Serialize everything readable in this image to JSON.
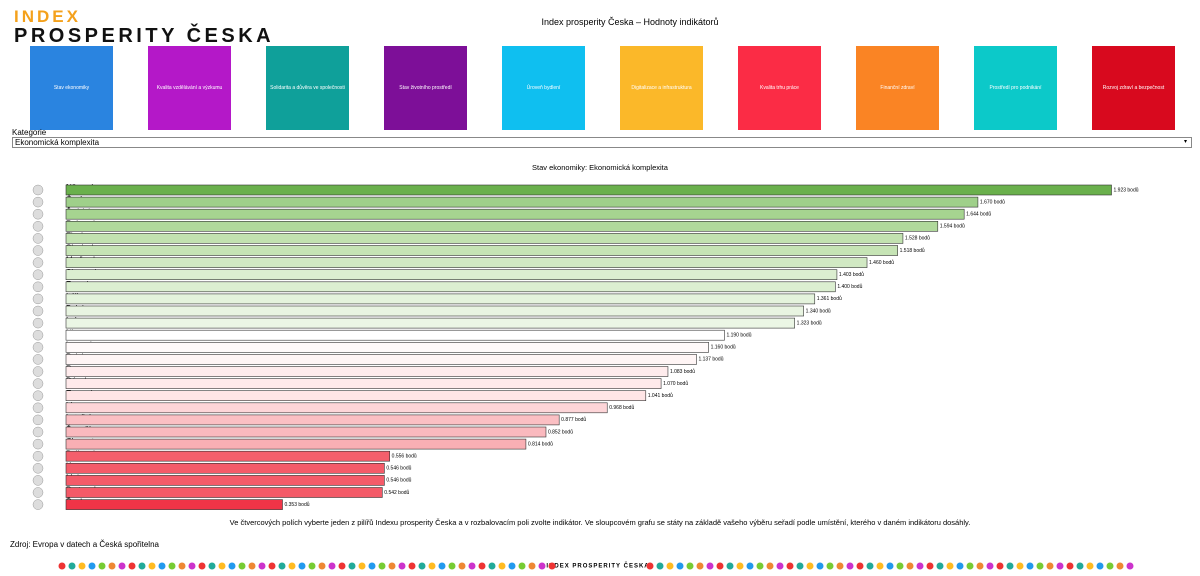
{
  "header": {
    "logo_top": "INDEX",
    "logo_bottom": "PROSPERITY ČESKA",
    "title": "Index prosperity Česka – Hodnoty indikátorů"
  },
  "tiles": [
    {
      "label": "Stav ekonomiky",
      "color": "#2a84e0"
    },
    {
      "label": "Kvalita vzdělávání a výzkumu",
      "color": "#b418c8"
    },
    {
      "label": "Solidarita a důvěra ve společnosti",
      "color": "#0fa09a"
    },
    {
      "label": "Stav životního prostředí",
      "color": "#7d0f98"
    },
    {
      "label": "Úroveň bydlení",
      "color": "#0fbff0"
    },
    {
      "label": "Digitalizace a infrastruktura",
      "color": "#fbb829"
    },
    {
      "label": "Kvalita trhu práce",
      "color": "#fb2c45"
    },
    {
      "label": "Finanční zdraví",
      "color": "#fa8424"
    },
    {
      "label": "Prostředí pro podnikání",
      "color": "#0cc9c9"
    },
    {
      "label": "Rozvoj zdraví a bezpečnost",
      "color": "#d8091e"
    }
  ],
  "filter": {
    "label": "Kategorie",
    "selected": "Ekonomická komplexita"
  },
  "chart_data": {
    "type": "bar",
    "orientation": "horizontal",
    "title": "Stav ekonomiky: Ekonomická komplexita",
    "categories": [
      "Německ",
      "Česko",
      "Švédsko",
      "Rakousk",
      "Finsko",
      "Slovinsk",
      "Maďarsk",
      "Slovensk",
      "Francie",
      "Itálie",
      "Belgie",
      "Irsko",
      "Nizozem",
      "Lucemb",
      "Polsko",
      "Rumuns",
      "Dánsko",
      "Estonsk",
      "Litva",
      "Lotyšsko",
      "Španěls",
      "Chorvats",
      "Bulharsk",
      "Kypr",
      "Malta",
      "Portugal",
      "Řecko"
    ],
    "values": [
      1.923,
      1.67,
      1.644,
      1.594,
      1.528,
      1.518,
      1.46,
      1.403,
      1.4,
      1.361,
      1.34,
      1.323,
      1.19,
      1.16,
      1.137,
      1.083,
      1.07,
      1.041,
      0.968,
      0.877,
      0.852,
      0.814,
      0.556,
      0.546,
      0.546,
      0.542,
      0.353
    ],
    "value_labels": [
      "1.923 bodů",
      "1.670 bodů",
      "1.644 bodů",
      "1.594 bodů",
      "1.528 bodů",
      "1.518 bodů",
      "1.460 bodů",
      "1.403 bodů",
      "1.400 bodů",
      "1.361 bodů",
      "1.340 bodů",
      "1.323 bodů",
      "1.190 bodů",
      "1.160 bodů",
      "1.137 bodů",
      "1.083 bodů",
      "1.070 bodů",
      "1.041 bodů",
      "0.968 bodů",
      "0.877 bodů",
      "0.852 bodů",
      "0.814 bodů",
      "0.556 bodů",
      "0.546 bodů",
      "0.546 bodů",
      "0.542 bodů",
      "0.353 bodů"
    ],
    "colors": [
      "#6ab04c",
      "#9fd08a",
      "#a6d490",
      "#b0d99b",
      "#c2e2b0",
      "#c6e4b5",
      "#d1e9c3",
      "#dbeed0",
      "#dcefd1",
      "#e4f3dc",
      "#e8f4e1",
      "#ebf6e5",
      "#ffffff",
      "#fffafa",
      "#fff5f5",
      "#ffeced",
      "#ffeaeb",
      "#ffe5e6",
      "#fdd5d8",
      "#fbbfc3",
      "#fab9be",
      "#f9afb4",
      "#f45f6c",
      "#f45b69",
      "#f45b69",
      "#f45a68",
      "#f03447"
    ],
    "xlim": [
      -0.057,
      2.03
    ]
  },
  "footer": {
    "note": "Ve čtvercových polích vyberte jeden z pilířů Indexu prosperity Česka a v rozbalovacím poli zvolte indikátor. Ve sloupcovém grafu se státy na základě vašeho výběru seřadí podle umístění, kterého v daném indikátoru dosáhly.",
    "source": "Zdroj: Evropa v datech a Česká spořitelna",
    "logo": "INDEX PROSPERITY ČESKA"
  }
}
